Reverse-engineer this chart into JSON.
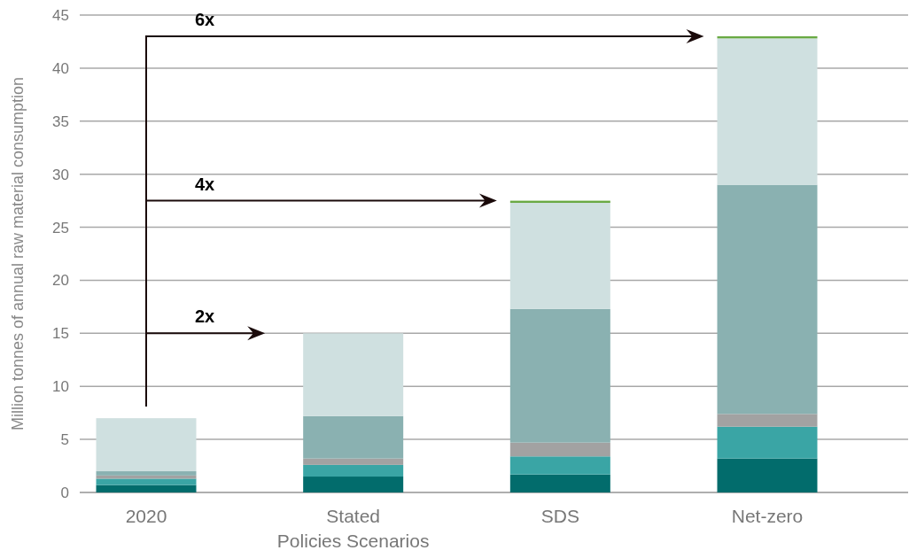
{
  "chart_data": {
    "type": "bar",
    "stacked": true,
    "ylabel": "Million tonnes of annual raw material consumption",
    "categories": [
      "2020",
      "Stated Policies Scenarios",
      "SDS",
      "Net-zero"
    ],
    "series": [
      {
        "color": "#026c6c",
        "values": [
          0.7,
          1.5,
          1.7,
          3.2
        ]
      },
      {
        "color": "#3aa5a5",
        "values": [
          0.6,
          1.1,
          1.7,
          3.0
        ]
      },
      {
        "color": "#a2a2a2",
        "values": [
          0.3,
          0.6,
          1.3,
          1.2
        ]
      },
      {
        "color": "#8ab1b1",
        "values": [
          0.4,
          4.0,
          12.6,
          21.6
        ]
      },
      {
        "color": "#cfe0e0",
        "values": [
          5.0,
          7.8,
          10.0,
          13.8
        ]
      },
      {
        "color": "#6aaa44",
        "values": [
          null,
          null,
          0.2,
          0.2
        ]
      }
    ],
    "ylim": [
      0,
      45
    ],
    "yticks": [
      0,
      5,
      10,
      15,
      20,
      25,
      30,
      35,
      40,
      45
    ],
    "grid": "y",
    "legend": false,
    "annotations": [
      "2x",
      "4x",
      "6x"
    ]
  }
}
